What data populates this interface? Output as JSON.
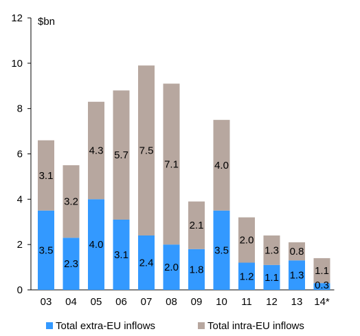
{
  "chart_data": {
    "type": "bar",
    "stacked": true,
    "title": "",
    "xlabel": "",
    "ylabel": "$bn",
    "ylim": [
      0,
      12
    ],
    "yticks": [
      0,
      2,
      4,
      6,
      8,
      10,
      12
    ],
    "grid": false,
    "legend_position": "bottom",
    "categories": [
      "03",
      "04",
      "05",
      "06",
      "07",
      "08",
      "09",
      "10",
      "11",
      "12",
      "13",
      "14*"
    ],
    "series": [
      {
        "name": "Total extra-EU inflows",
        "color": "#3399ff",
        "values": [
          3.5,
          2.3,
          4.0,
          3.1,
          2.4,
          2.0,
          1.8,
          3.5,
          1.2,
          1.1,
          1.3,
          0.3
        ],
        "labels": [
          "3.5",
          "2.3",
          "4.0",
          "3.1",
          "2.4",
          "2.0",
          "1.8",
          "3.5",
          "1.2",
          "1.1",
          "1.3",
          "0.3"
        ]
      },
      {
        "name": "Total intra-EU inflows",
        "color": "#b7a79f",
        "values": [
          3.1,
          3.2,
          4.3,
          5.7,
          7.5,
          7.1,
          2.1,
          4.0,
          2.0,
          1.3,
          0.8,
          1.1
        ],
        "labels": [
          "3.1",
          "3.2",
          "4.3",
          "5.7",
          "7.5",
          "7.1",
          "2.1",
          "4.0",
          "2.0",
          "1.3",
          "0.8",
          "1.1"
        ]
      }
    ]
  }
}
